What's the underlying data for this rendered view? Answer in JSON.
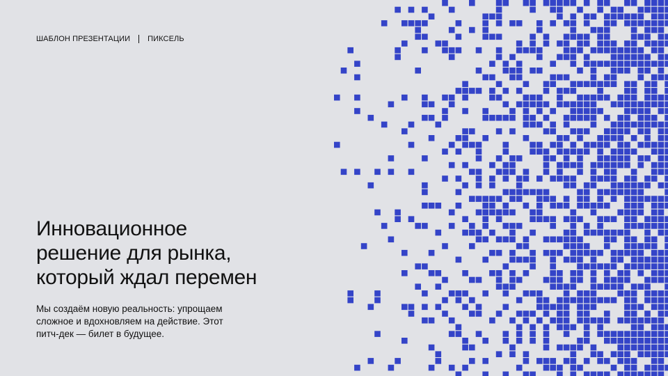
{
  "header": {
    "template_label": "ШАБЛОН ПРЕЗЕНТАЦИИ",
    "brand_label": "ПИКСЕЛЬ"
  },
  "title_lines": [
    "Инновационное",
    "решение для рынка,",
    "который ждал перемен"
  ],
  "subtitle_lines": [
    "Мы создаём новую реальность: упрощаем",
    "сложное и вдохновляем на действие. Этот",
    "питч-дек — билет в будущее."
  ],
  "colors": {
    "background": "#e1e2e6",
    "pixel": "#3444c8",
    "text": "#111111"
  }
}
